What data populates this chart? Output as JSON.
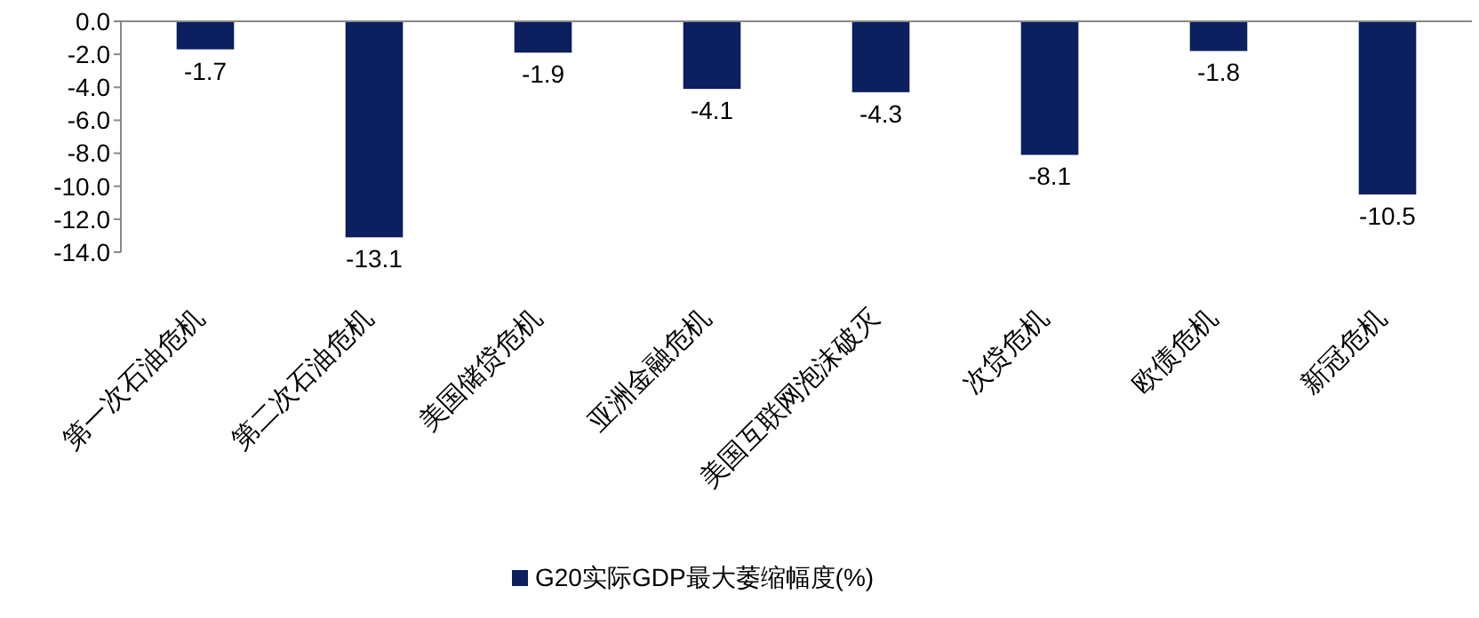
{
  "chart_data": {
    "type": "bar",
    "categories": [
      "第一次石油危机",
      "第二次石油危机",
      "美国储贷危机",
      "亚洲金融危机",
      "美国互联网泡沫破灭",
      "次贷危机",
      "欧债危机",
      "新冠危机"
    ],
    "series": [
      {
        "name": "G20实际GDP最大萎缩幅度(%)",
        "color": "#0c1f5e",
        "values": [
          -1.7,
          -13.1,
          -1.9,
          -4.1,
          -4.3,
          -8.1,
          -1.8,
          -10.5
        ]
      }
    ],
    "ylim": [
      -14,
      0
    ],
    "yticks": [
      {
        "value": 0,
        "label": "0.0"
      },
      {
        "value": -2,
        "label": "-2.0"
      },
      {
        "value": -4,
        "label": "-4.0"
      },
      {
        "value": -6,
        "label": "-6.0"
      },
      {
        "value": -8,
        "label": "-8.0"
      },
      {
        "value": -10,
        "label": "-10.0"
      },
      {
        "value": -12,
        "label": "-12.0"
      },
      {
        "value": -14,
        "label": "-14.0"
      }
    ],
    "data_labels": true,
    "legend": "bottom",
    "grid": false
  }
}
